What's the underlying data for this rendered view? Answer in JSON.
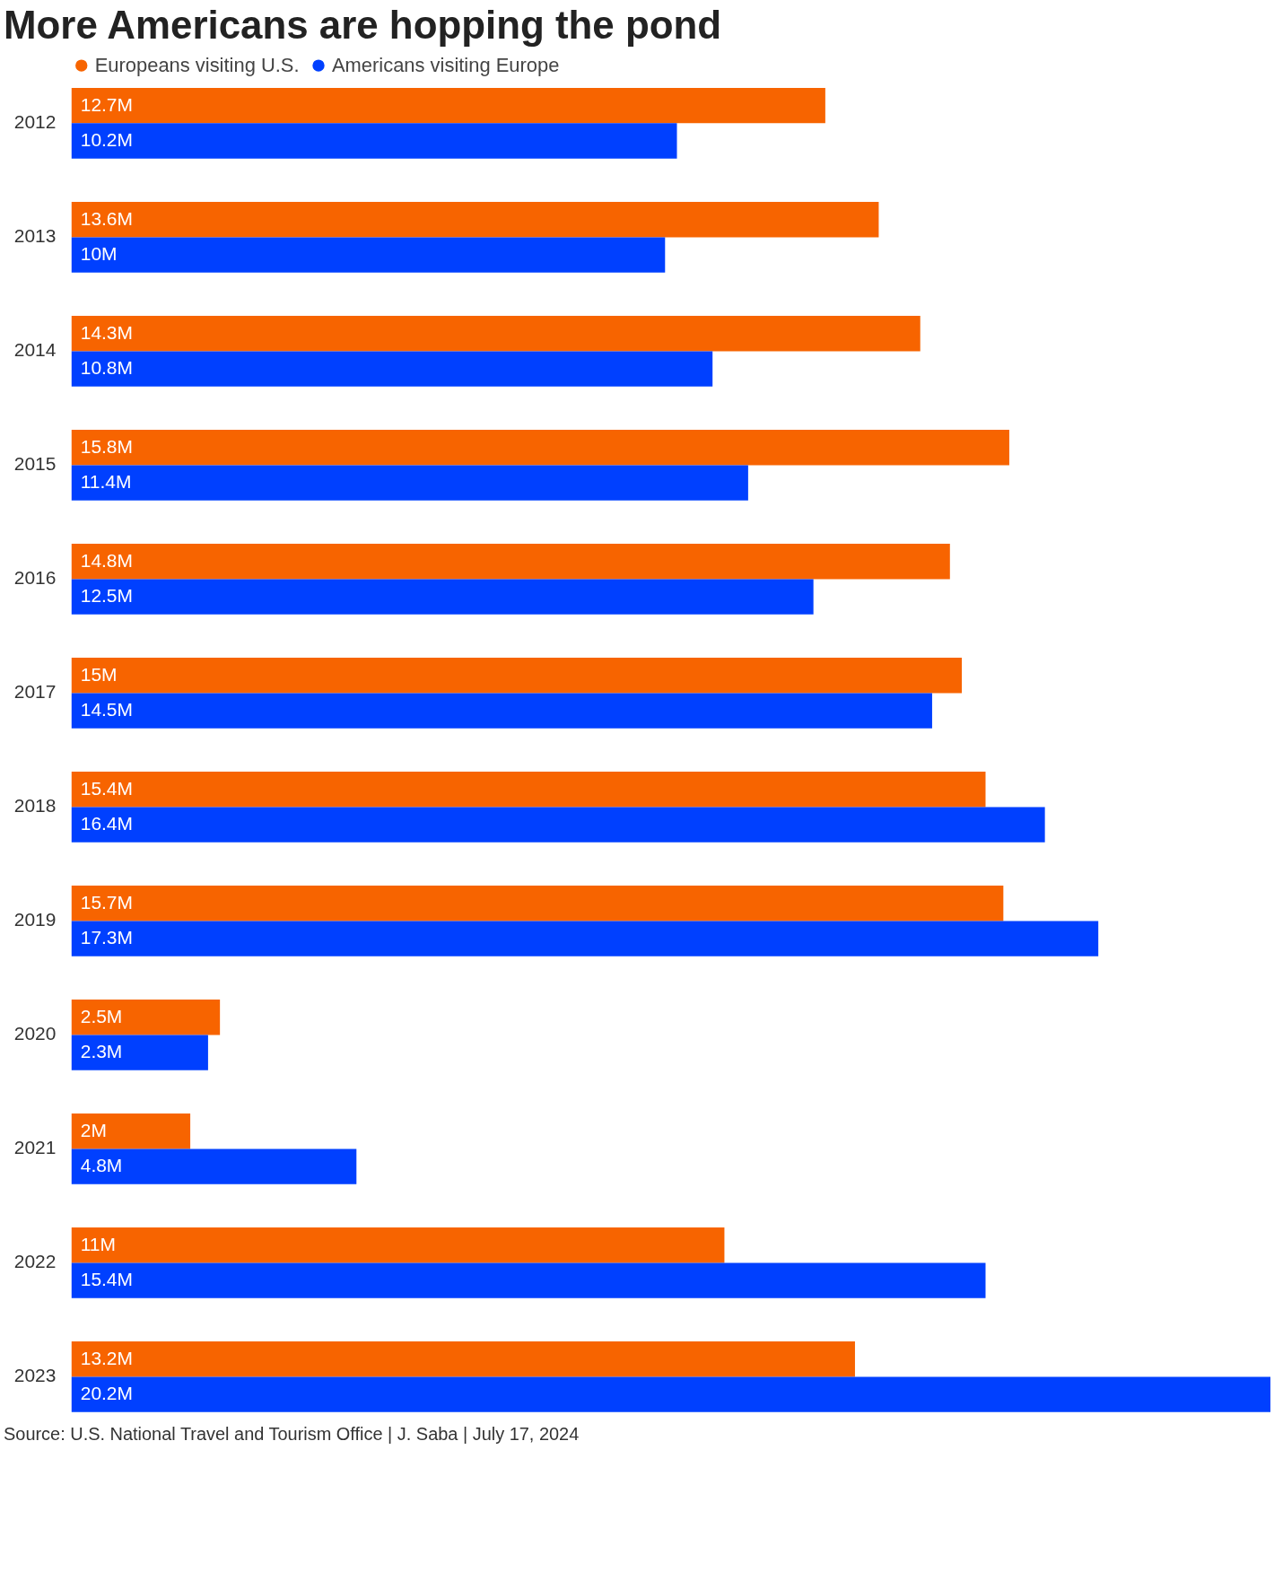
{
  "chart_data": {
    "type": "bar",
    "orientation": "horizontal",
    "title": "More Americans are hopping the pond",
    "categories": [
      "2012",
      "2013",
      "2014",
      "2015",
      "2016",
      "2017",
      "2018",
      "2019",
      "2020",
      "2021",
      "2022",
      "2023"
    ],
    "series": [
      {
        "name": "Europeans visiting U.S.",
        "color": "#f76400",
        "values": [
          12.7,
          13.6,
          14.3,
          15.8,
          14.8,
          15,
          15.4,
          15.7,
          2.5,
          2,
          11,
          13.2
        ],
        "value_labels": [
          "12.7M",
          "13.6M",
          "14.3M",
          "15.8M",
          "14.8M",
          "15M",
          "15.4M",
          "15.7M",
          "2.5M",
          "2M",
          "11M",
          "13.2M"
        ]
      },
      {
        "name": "Americans visiting Europe",
        "color": "#0040ff",
        "values": [
          10.2,
          10,
          10.8,
          11.4,
          12.5,
          14.5,
          16.4,
          17.3,
          2.3,
          4.8,
          15.4,
          20.2
        ],
        "value_labels": [
          "10.2M",
          "10M",
          "10.8M",
          "11.4M",
          "12.5M",
          "14.5M",
          "16.4M",
          "17.3M",
          "2.3M",
          "4.8M",
          "15.4M",
          "20.2M"
        ]
      }
    ],
    "legend": "top left",
    "grid": false,
    "annotations": [
      "Source: U.S. National Travel and Tourism Office | J. Saba | July 17, 2024"
    ]
  }
}
